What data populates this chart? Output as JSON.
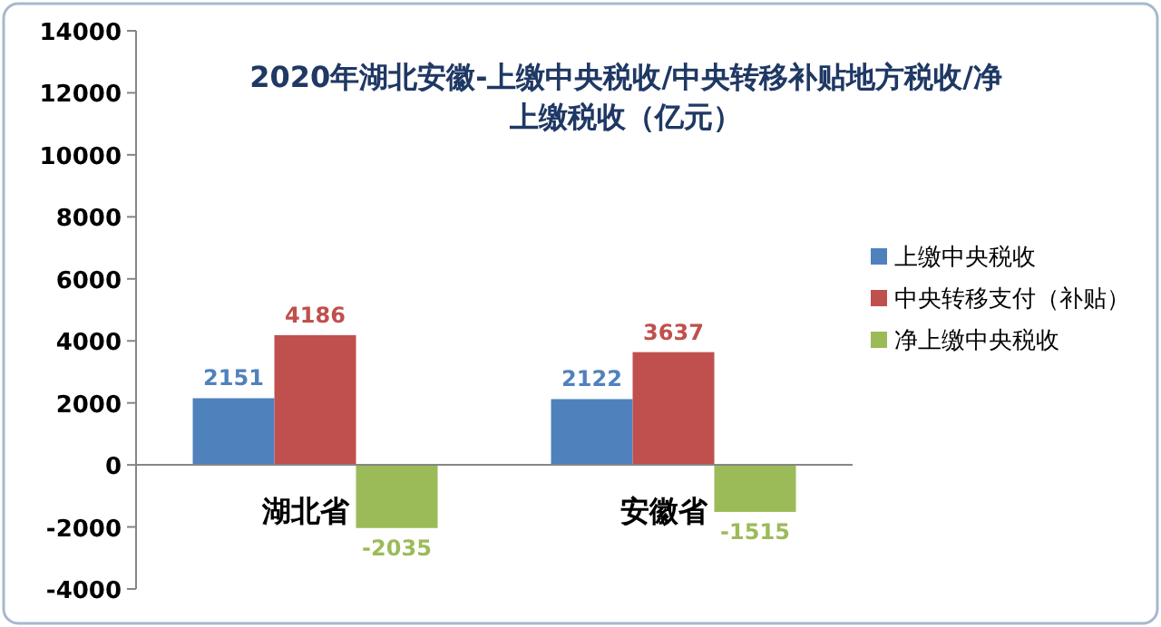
{
  "chart_data": {
    "type": "bar",
    "title": "2020年湖北安徽-上缴中央税收/中央转移补贴地方税收/净上缴税收（亿元）",
    "categories": [
      "湖北省",
      "安徽省"
    ],
    "series": [
      {
        "name": "上缴中央税收",
        "color": "#4f81bd",
        "values": [
          2151,
          2122
        ]
      },
      {
        "name": "中央转移支付（补贴）",
        "color": "#c0504d",
        "values": [
          4186,
          3637
        ]
      },
      {
        "name": "净上缴中央税收",
        "color": "#9bbb59",
        "values": [
          -2035,
          -1515
        ]
      }
    ],
    "ylim": [
      -4000,
      14000
    ],
    "yticks": [
      -4000,
      -2000,
      0,
      2000,
      4000,
      6000,
      8000,
      10000,
      12000,
      14000
    ],
    "data_labels": true,
    "legend": "right",
    "grid": false
  }
}
